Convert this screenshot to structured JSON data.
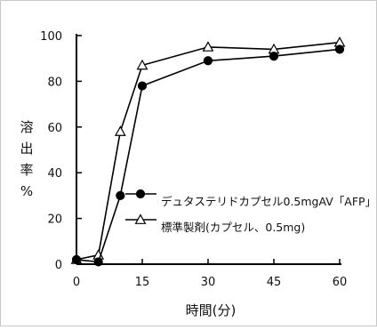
{
  "chart_data": {
    "type": "line",
    "xlabel": "時間(分)",
    "ylabel": [
      "溶",
      "出",
      "率",
      "%"
    ],
    "x": [
      0,
      5,
      10,
      15,
      30,
      45,
      60
    ],
    "xticks": [
      "0",
      "15",
      "30",
      "45",
      "60"
    ],
    "yticks": [
      "0",
      "20",
      "40",
      "60",
      "80",
      "100"
    ],
    "xlim": [
      0,
      60
    ],
    "ylim": [
      0,
      100
    ],
    "grid": false,
    "legend_position": "center-right",
    "series": [
      {
        "name": "デュタステリドカプセル0.5mgAV「AFP」",
        "marker": "filled-circle",
        "color": "#000000",
        "values": [
          2,
          1,
          30,
          78,
          89,
          91,
          94
        ]
      },
      {
        "name": "標準製剤(カプセル、0.5mg)",
        "marker": "open-triangle",
        "color": "#000000",
        "values": [
          2,
          4,
          58,
          87,
          95,
          94,
          97
        ]
      }
    ]
  }
}
